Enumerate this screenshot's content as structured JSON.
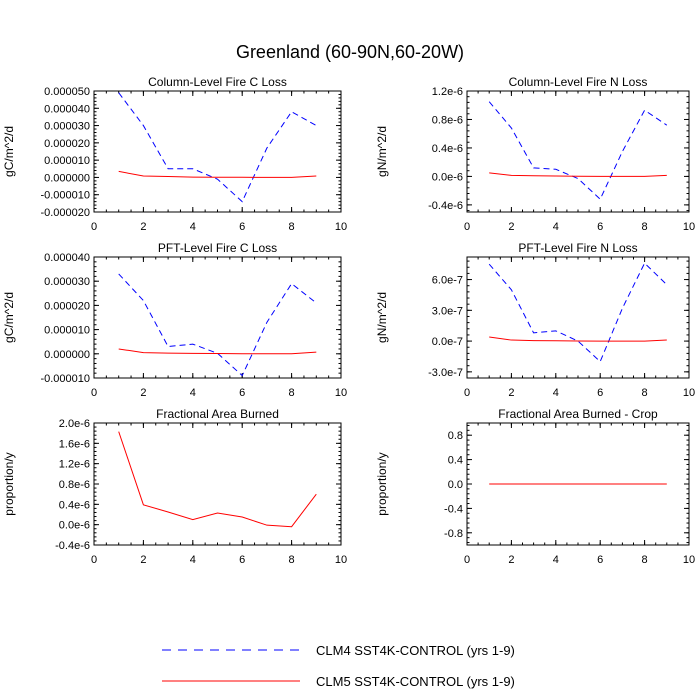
{
  "title": "Greenland (60-90N,60-20W)",
  "legend": {
    "position": "bottom-center",
    "items": [
      {
        "label": "CLM4 SST4K-CONTROL (yrs 1-9)",
        "color": "#0000ff",
        "dash": "dashed"
      },
      {
        "label": "CLM5 SST4K-CONTROL (yrs 1-9)",
        "color": "#ff0000",
        "dash": "solid"
      }
    ]
  },
  "colors": {
    "clm4": "#0000ff",
    "clm5": "#ff0000",
    "axis": "#000000"
  },
  "chart_data": [
    {
      "id": "col-c",
      "type": "line",
      "title": "Column-Level Fire C Loss",
      "ylabel": "gC/m^2/d",
      "xlim": [
        0,
        10
      ],
      "xticks": [
        0,
        2,
        4,
        6,
        8,
        10
      ],
      "xtick_labels": [
        "0",
        "2",
        "4",
        "6",
        "8",
        "10"
      ],
      "ylim": [
        -2e-05,
        5e-05
      ],
      "yticks": [
        -2e-05,
        -1e-05,
        0,
        1e-05,
        2e-05,
        3e-05,
        4e-05,
        5e-05
      ],
      "ytick_labels": [
        "-0.000020",
        "-0.000010",
        "0.000000",
        "0.000010",
        "0.000020",
        "0.000030",
        "0.000040",
        "0.000050"
      ],
      "x": [
        1,
        2,
        3,
        4,
        5,
        6,
        7,
        8,
        9
      ],
      "series": [
        {
          "name": "CLM4 SST4K-CONTROL (yrs 1-9)",
          "style": "dashed",
          "color": "#0000ff",
          "values": [
            4.9e-05,
            3e-05,
            5e-06,
            5e-06,
            -1e-06,
            -1.4e-05,
            1.7e-05,
            3.8e-05,
            3e-05
          ]
        },
        {
          "name": "CLM5 SST4K-CONTROL (yrs 1-9)",
          "style": "solid",
          "color": "#ff0000",
          "values": [
            3.5e-06,
            8e-07,
            5e-07,
            2e-07,
            1e-07,
            1e-07,
            0.0,
            0.0,
            8e-07
          ]
        }
      ]
    },
    {
      "id": "col-n",
      "type": "line",
      "title": "Column-Level Fire N Loss",
      "ylabel": "gN/m^2/d",
      "xlim": [
        0,
        10
      ],
      "xticks": [
        0,
        2,
        4,
        6,
        8,
        10
      ],
      "xtick_labels": [
        "0",
        "2",
        "4",
        "6",
        "8",
        "10"
      ],
      "ylim": [
        -5e-07,
        1.2e-06
      ],
      "yticks": [
        -4e-07,
        0.0,
        4e-07,
        8e-07,
        1.2e-06
      ],
      "ytick_labels": [
        "-0.4e-6",
        "0.0e-6",
        "0.4e-6",
        "0.8e-6",
        "1.2e-6"
      ],
      "x": [
        1,
        2,
        3,
        4,
        5,
        6,
        7,
        8,
        9
      ],
      "series": [
        {
          "name": "CLM4 SST4K-CONTROL (yrs 1-9)",
          "style": "dashed",
          "color": "#0000ff",
          "values": [
            1.05e-06,
            6.8e-07,
            1.2e-07,
            1e-07,
            -3e-08,
            -3.2e-07,
            3.5e-07,
            9.3e-07,
            7.2e-07
          ]
        },
        {
          "name": "CLM5 SST4K-CONTROL (yrs 1-9)",
          "style": "solid",
          "color": "#ff0000",
          "values": [
            5e-08,
            1.5e-08,
            1e-08,
            5e-09,
            2e-09,
            0.0,
            0.0,
            0.0,
            1.5e-08
          ]
        }
      ]
    },
    {
      "id": "pft-c",
      "type": "line",
      "title": "PFT-Level Fire C Loss",
      "ylabel": "gC/m^2/d",
      "xlim": [
        0,
        10
      ],
      "xticks": [
        0,
        2,
        4,
        6,
        8,
        10
      ],
      "xtick_labels": [
        "0",
        "2",
        "4",
        "6",
        "8",
        "10"
      ],
      "ylim": [
        -1e-05,
        4e-05
      ],
      "yticks": [
        -1e-05,
        0,
        1e-05,
        2e-05,
        3e-05,
        4e-05
      ],
      "ytick_labels": [
        "-0.000010",
        "0.000000",
        "0.000010",
        "0.000020",
        "0.000030",
        "0.000040"
      ],
      "x": [
        1,
        2,
        3,
        4,
        5,
        6,
        7,
        8,
        9
      ],
      "series": [
        {
          "name": "CLM4 SST4K-CONTROL (yrs 1-9)",
          "style": "dashed",
          "color": "#0000ff",
          "values": [
            3.3e-05,
            2.2e-05,
            3e-06,
            4e-06,
            2e-07,
            -9e-06,
            1.3e-05,
            2.9e-05,
            2.1e-05
          ]
        },
        {
          "name": "CLM5 SST4K-CONTROL (yrs 1-9)",
          "style": "solid",
          "color": "#ff0000",
          "values": [
            2e-06,
            5e-07,
            3e-07,
            2e-07,
            1e-07,
            0.0,
            0.0,
            0.0,
            7e-07
          ]
        }
      ]
    },
    {
      "id": "pft-n",
      "type": "line",
      "title": "PFT-Level Fire N Loss",
      "ylabel": "gN/m^2/d",
      "xlim": [
        0,
        10
      ],
      "xticks": [
        0,
        2,
        4,
        6,
        8,
        10
      ],
      "xtick_labels": [
        "0",
        "2",
        "4",
        "6",
        "8",
        "10"
      ],
      "ylim": [
        -3.6e-07,
        8.2e-07
      ],
      "yticks": [
        -3e-07,
        0.0,
        3e-07,
        6e-07
      ],
      "ytick_labels": [
        "-3.0e-7",
        "0.0e-7",
        "3.0e-7",
        "6.0e-7"
      ],
      "x": [
        1,
        2,
        3,
        4,
        5,
        6,
        7,
        8,
        9
      ],
      "series": [
        {
          "name": "CLM4 SST4K-CONTROL (yrs 1-9)",
          "style": "dashed",
          "color": "#0000ff",
          "values": [
            7.5e-07,
            5e-07,
            8e-08,
            1e-07,
            0.0,
            -2e-07,
            3.2e-07,
            7.6e-07,
            5.5e-07
          ]
        },
        {
          "name": "CLM5 SST4K-CONTROL (yrs 1-9)",
          "style": "solid",
          "color": "#ff0000",
          "values": [
            4e-08,
            1e-08,
            5e-09,
            3e-09,
            1e-09,
            0.0,
            0.0,
            0.0,
            1e-08
          ]
        }
      ]
    },
    {
      "id": "fab",
      "type": "line",
      "title": "Fractional Area Burned",
      "ylabel": "proportion/y",
      "xlim": [
        0,
        10
      ],
      "xticks": [
        0,
        2,
        4,
        6,
        8,
        10
      ],
      "xtick_labels": [
        "0",
        "2",
        "4",
        "6",
        "8",
        "10"
      ],
      "ylim": [
        -4e-07,
        2e-06
      ],
      "yticks": [
        -4e-07,
        0.0,
        4e-07,
        8e-07,
        1.2e-06,
        1.6e-06,
        2e-06
      ],
      "ytick_labels": [
        "-0.4e-6",
        "0.0e-6",
        "0.4e-6",
        "0.8e-6",
        "1.2e-6",
        "1.6e-6",
        "2.0e-6"
      ],
      "x": [
        1,
        2,
        3,
        4,
        5,
        6,
        7,
        8,
        9
      ],
      "series": [
        {
          "name": "CLM5 SST4K-CONTROL (yrs 1-9)",
          "style": "solid",
          "color": "#ff0000",
          "values": [
            1.83e-06,
            3.9e-07,
            2.5e-07,
            1e-07,
            2.3e-07,
            1.5e-07,
            -1e-08,
            -4e-08,
            6e-07
          ]
        }
      ]
    },
    {
      "id": "fab-crop",
      "type": "line",
      "title": "Fractional Area Burned - Crop",
      "ylabel": "proportion/y",
      "xlim": [
        0,
        10
      ],
      "xticks": [
        0,
        2,
        4,
        6,
        8,
        10
      ],
      "xtick_labels": [
        "0",
        "2",
        "4",
        "6",
        "8",
        "10"
      ],
      "ylim": [
        -1.0,
        1.0
      ],
      "yticks": [
        -0.8,
        -0.4,
        0.0,
        0.4,
        0.8
      ],
      "ytick_labels": [
        "-0.8",
        "-0.4",
        "0.0",
        "0.4",
        "0.8"
      ],
      "x": [
        1,
        2,
        3,
        4,
        5,
        6,
        7,
        8,
        9
      ],
      "series": [
        {
          "name": "CLM5 SST4K-CONTROL (yrs 1-9)",
          "style": "solid",
          "color": "#ff0000",
          "values": [
            0,
            0,
            0,
            0,
            0,
            0,
            0,
            0,
            0
          ]
        }
      ]
    }
  ]
}
